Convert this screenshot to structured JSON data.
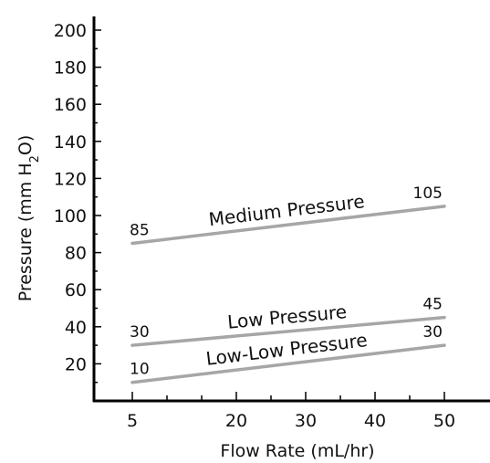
{
  "chart_data": {
    "type": "line",
    "title": "",
    "xlabel": "Flow Rate (mL/hr)",
    "ylabel": "Pressure (mm H2O)",
    "ylabel_parts": [
      "Pressure (mm H",
      "2",
      "O)"
    ],
    "xlim": [
      5,
      50
    ],
    "ylim": [
      0,
      200
    ],
    "x_ticks": [
      5,
      20,
      30,
      40,
      50
    ],
    "y_ticks": [
      20,
      40,
      60,
      80,
      100,
      120,
      140,
      160,
      180,
      200
    ],
    "x_scale": "linear",
    "grid": false,
    "legend": "none",
    "series": [
      {
        "name": "Medium Pressure",
        "x": [
          5,
          50
        ],
        "values": [
          85,
          105
        ],
        "color": "#a6a6a6"
      },
      {
        "name": "Low Pressure",
        "x": [
          5,
          50
        ],
        "values": [
          30,
          45
        ],
        "color": "#a6a6a6"
      },
      {
        "name": "Low-Low Pressure",
        "x": [
          5,
          50
        ],
        "values": [
          10,
          30
        ],
        "color": "#a6a6a6"
      }
    ],
    "point_labels": [
      {
        "text": "85",
        "series": 0,
        "end": "start"
      },
      {
        "text": "105",
        "series": 0,
        "end": "end"
      },
      {
        "text": "30",
        "series": 1,
        "end": "start"
      },
      {
        "text": "45",
        "series": 1,
        "end": "end"
      },
      {
        "text": "10",
        "series": 2,
        "end": "start"
      },
      {
        "text": "30",
        "series": 2,
        "end": "end"
      }
    ]
  }
}
